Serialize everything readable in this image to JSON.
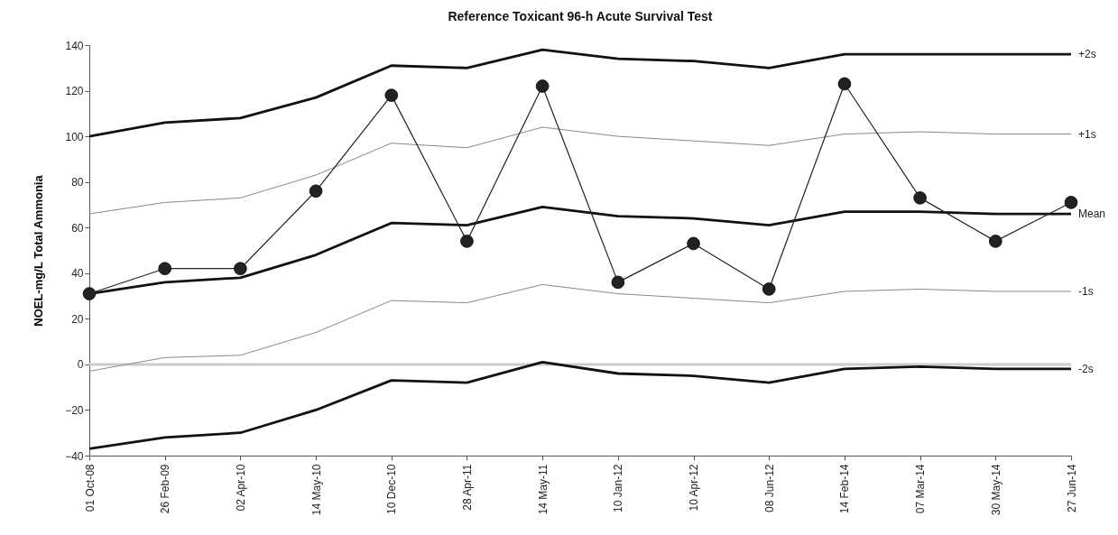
{
  "chart_data": {
    "type": "line",
    "title": "Reference Toxicant 96-h Acute Survival Test",
    "ylabel": "NOEL-mg/L Total Ammonia",
    "categories": [
      "01 Oct-08",
      "26 Feb-09",
      "02 Apr-10",
      "14 May-10",
      "10 Dec-10",
      "28 Apr-11",
      "14 May-11",
      "10 Jan-12",
      "10 Apr-12",
      "08 Jun-12",
      "14 Feb-14",
      "07 Mar-14",
      "30 May-14",
      "27 Jun-14"
    ],
    "ylim": [
      -40,
      140
    ],
    "yticks": [
      -40,
      -20,
      0,
      20,
      40,
      60,
      80,
      100,
      120,
      140
    ],
    "grid": false,
    "ref_lines": [
      {
        "axis": "y",
        "value": 0,
        "color": "#cccccc"
      }
    ],
    "series": [
      {
        "name": "+2s",
        "color": "#111111",
        "marker": "none",
        "values": [
          100,
          106,
          108,
          117,
          131,
          130,
          138,
          134,
          133,
          130,
          136,
          136,
          136,
          136
        ]
      },
      {
        "name": "+1s",
        "color": "#888888",
        "marker": "none",
        "values": [
          66,
          71,
          73,
          83,
          97,
          95,
          104,
          100,
          98,
          96,
          101,
          102,
          101,
          101
        ]
      },
      {
        "name": "Mean",
        "color": "#111111",
        "marker": "none",
        "values": [
          31,
          36,
          38,
          48,
          62,
          61,
          69,
          65,
          64,
          61,
          67,
          67,
          66,
          66
        ]
      },
      {
        "name": "-1s",
        "color": "#888888",
        "marker": "none",
        "values": [
          -3,
          3,
          4,
          14,
          28,
          27,
          35,
          31,
          29,
          27,
          32,
          33,
          32,
          32
        ]
      },
      {
        "name": "-2s",
        "color": "#111111",
        "marker": "none",
        "values": [
          -37,
          -32,
          -30,
          -20,
          -7,
          -8,
          1,
          -4,
          -5,
          -8,
          -2,
          -1,
          -2,
          -2
        ]
      },
      {
        "color": "#222222",
        "marker": "circle",
        "values": [
          31,
          42,
          42,
          76,
          118,
          54,
          122,
          36,
          53,
          33,
          123,
          73,
          54,
          71
        ]
      }
    ]
  }
}
